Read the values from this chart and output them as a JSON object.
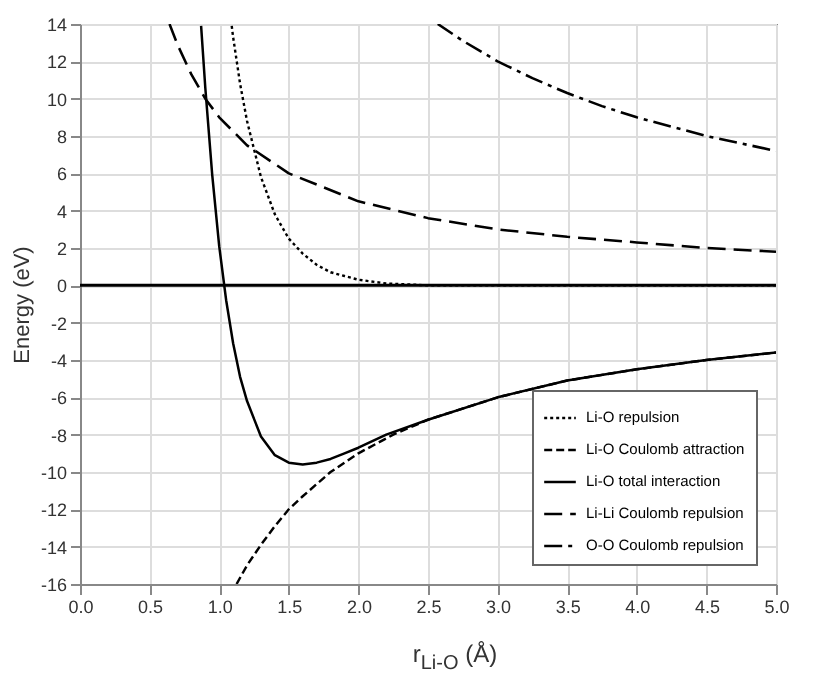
{
  "chart_data": {
    "type": "line",
    "xlabel": "r$_{Li-O}$ (Å)",
    "ylabel": "Energy (eV)",
    "xlim": [
      0,
      5
    ],
    "xticks": [
      {
        "value": 0,
        "label": "0.0"
      },
      {
        "value": 0.5,
        "label": "0.5"
      },
      {
        "value": 1,
        "label": "1.0"
      },
      {
        "value": 1.5,
        "label": "1.5"
      },
      {
        "value": 2,
        "label": "2.0"
      },
      {
        "value": 2.5,
        "label": "2.5"
      },
      {
        "value": 3,
        "label": "3.0"
      },
      {
        "value": 3.5,
        "label": "3.5"
      },
      {
        "value": 4,
        "label": "4.0"
      },
      {
        "value": 4.5,
        "label": "4.5"
      },
      {
        "value": 5,
        "label": "5.0"
      }
    ],
    "ylim": [
      -16,
      14
    ],
    "yticks": [
      -16,
      -14,
      -12,
      -10,
      -8,
      -6,
      -4,
      -2,
      0,
      2,
      4,
      6,
      8,
      10,
      12,
      14
    ],
    "grid": true,
    "legend": "bottom right",
    "ref_lines": [
      {
        "axis": "y",
        "value": 0,
        "color": "#000000",
        "line_style": "solid"
      }
    ],
    "series": [
      {
        "name": "Li-O repulsion",
        "color": "#000000",
        "line_style": "dotted",
        "x": [
          1.09,
          1.1,
          1.15,
          1.2,
          1.3,
          1.4,
          1.5,
          1.6,
          1.7,
          1.8,
          1.9,
          2.0,
          2.2,
          2.5,
          3.0,
          4.0,
          5.0
        ],
        "values": [
          13.9,
          13.3,
          10.8,
          8.8,
          5.8,
          3.8,
          2.5,
          1.7,
          1.1,
          0.7,
          0.5,
          0.3,
          0.1,
          0.0,
          0.0,
          0.0,
          0.0
        ]
      },
      {
        "name": "Li-O Coulomb attraction",
        "color": "#000000",
        "line_style": "dashed",
        "x": [
          1.125,
          1.2,
          1.3,
          1.4,
          1.5,
          1.6,
          1.8,
          2.0,
          2.25,
          2.5,
          3.0,
          3.5,
          4.0,
          4.5,
          5.0
        ],
        "values": [
          -16,
          -15,
          -13.9,
          -12.9,
          -12,
          -11.3,
          -10,
          -9,
          -8,
          -7.2,
          -6,
          -5.1,
          -4.5,
          -4,
          -3.6
        ]
      },
      {
        "name": "Li-O total interaction",
        "color": "#000000",
        "line_style": "solid",
        "x": [
          0.87,
          0.9,
          0.95,
          1.0,
          1.05,
          1.1,
          1.15,
          1.2,
          1.3,
          1.4,
          1.5,
          1.6,
          1.7,
          1.8,
          1.9,
          2.0,
          2.2,
          2.5,
          3.0,
          3.5,
          4.0,
          4.5,
          5.0
        ],
        "values": [
          13.9,
          10.6,
          5.9,
          2.1,
          -0.8,
          -3.1,
          -4.9,
          -6.2,
          -8.1,
          -9.1,
          -9.5,
          -9.6,
          -9.5,
          -9.3,
          -9.0,
          -8.7,
          -8.0,
          -7.2,
          -6,
          -5.1,
          -4.5,
          -4,
          -3.6
        ]
      },
      {
        "name": "Li-Li Coulomb repulsion",
        "color": "#000000",
        "line_style": "longdash",
        "x": [
          0.643,
          0.7,
          0.8,
          0.9,
          1.0,
          1.2,
          1.5,
          2.0,
          2.5,
          3.0,
          3.5,
          4.0,
          4.5,
          5.0
        ],
        "values": [
          14,
          12.9,
          11.3,
          10,
          9,
          7.5,
          6,
          4.5,
          3.6,
          3,
          2.6,
          2.3,
          2,
          1.8
        ]
      },
      {
        "name": "O-O Coulomb repulsion",
        "color": "#000000",
        "line_style": "dashdot",
        "x": [
          2.57,
          2.75,
          3.0,
          3.25,
          3.5,
          3.75,
          4.0,
          4.5,
          5.0
        ],
        "values": [
          14,
          13.1,
          12,
          11.1,
          10.3,
          9.6,
          9,
          8,
          7.2
        ]
      }
    ]
  }
}
